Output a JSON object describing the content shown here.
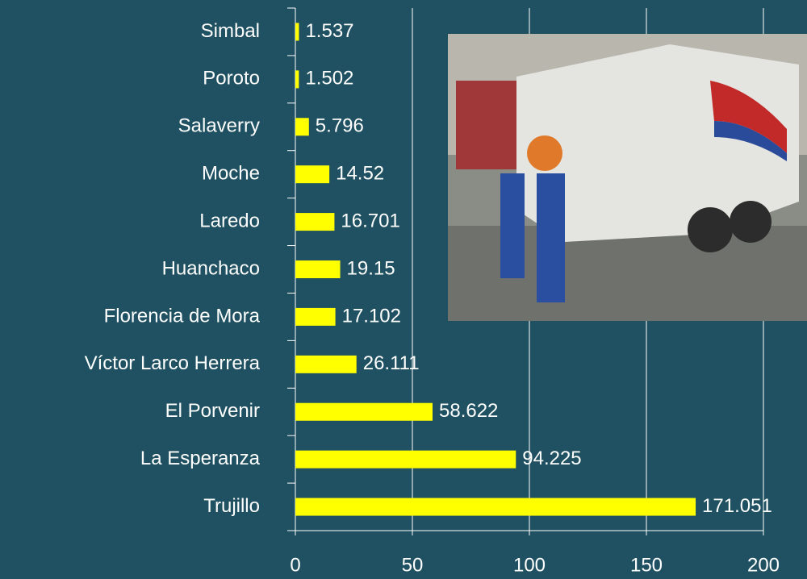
{
  "chart_data": {
    "type": "barh",
    "categories": [
      "Simbal",
      "Poroto",
      "Salaverry",
      "Moche",
      "Laredo",
      "Huanchaco",
      "Florencia de Mora",
      "Víctor Larco Herrera",
      "El Porvenir",
      "La Esperanza",
      "Trujillo"
    ],
    "values": [
      1.537,
      1.502,
      5.796,
      14.52,
      16.701,
      19.15,
      17.102,
      26.111,
      58.622,
      94.225,
      171.051
    ],
    "color": "#ffff00",
    "xlim": [
      0,
      200
    ],
    "xticks": [
      0,
      50,
      100,
      150,
      200
    ],
    "grid": true
  }
}
